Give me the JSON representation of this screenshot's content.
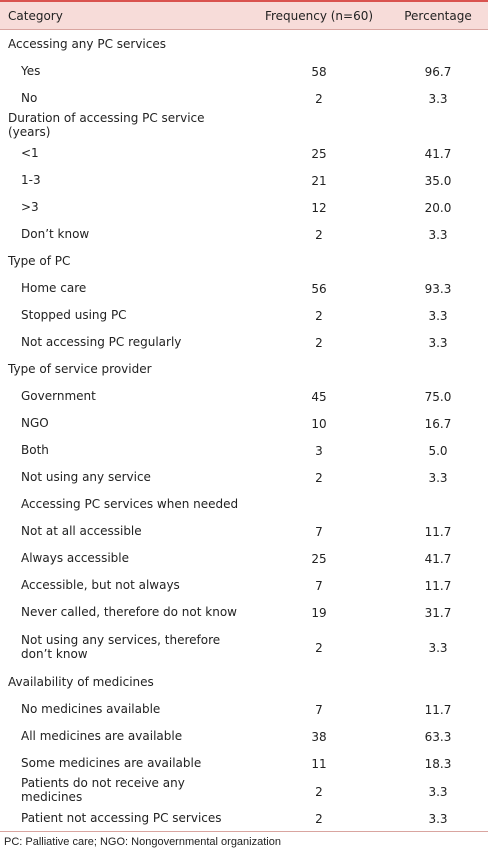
{
  "table": {
    "header": [
      "Category",
      "Frequency (n=60)",
      "Percentage"
    ],
    "rows": [
      [
        "Accessing any PC services"
      ],
      [
        "Yes",
        58,
        "96.7"
      ],
      [
        "No",
        2,
        "3.3"
      ],
      [
        "Duration of accessing PC service (years)"
      ],
      [
        "<1",
        25,
        "41.7"
      ],
      [
        "1-3",
        21,
        "35.0"
      ],
      [
        ">3",
        12,
        "20.0"
      ],
      [
        "Don’t know",
        2,
        "3.3"
      ],
      [
        "Type of PC"
      ],
      [
        "Home care",
        56,
        "93.3"
      ],
      [
        "Stopped using PC",
        2,
        "3.3"
      ],
      [
        "Not accessing PC regularly",
        2,
        "3.3"
      ],
      [
        "Type of service provider"
      ],
      [
        "Government",
        45,
        "75.0"
      ],
      [
        "NGO",
        10,
        "16.7"
      ],
      [
        "Both",
        3,
        "5.0"
      ],
      [
        "Not using any service",
        2,
        "3.3"
      ],
      [
        "Accessing PC services when needed",
        null,
        null
      ],
      [
        "Not at all accessible",
        7,
        "11.7"
      ],
      [
        "Always accessible",
        25,
        "41.7"
      ],
      [
        "Accessible, but not always",
        7,
        "11.7"
      ],
      [
        "Never called, therefore do not know",
        19,
        "31.7"
      ],
      [
        "Not using any services, therefore don’t know",
        2,
        "3.3"
      ],
      [
        "Availability of medicines"
      ],
      [
        "No medicines available",
        7,
        "11.7"
      ],
      [
        "All medicines are available",
        38,
        "63.3"
      ],
      [
        "Some medicines are available",
        11,
        "18.3"
      ],
      [
        "Patients do not receive any medicines",
        2,
        "3.3"
      ],
      [
        "Patient not accessing PC services",
        2,
        "3.3"
      ]
    ],
    "footnote": "PC: Palliative care; NGO: Nongovernmental organization"
  }
}
